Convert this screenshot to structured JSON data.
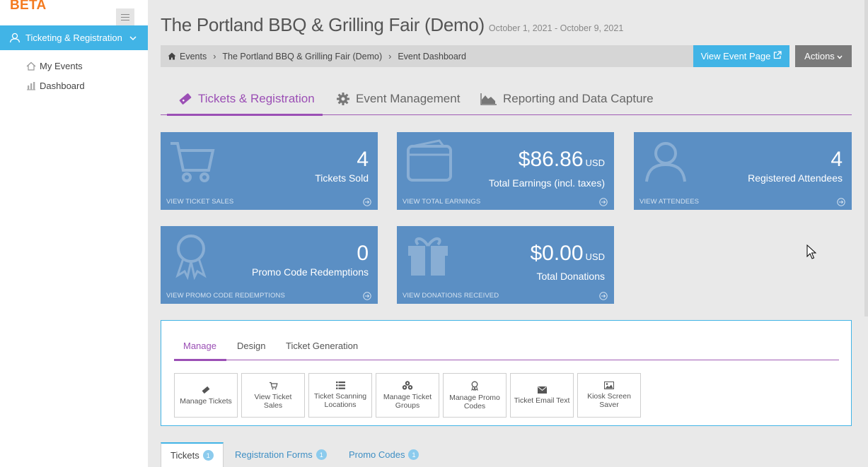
{
  "sidebar": {
    "beta": "BETA",
    "main_item": "Ticketing & Registration",
    "items": [
      {
        "label": "My Events",
        "icon": "home-icon"
      },
      {
        "label": "Dashboard",
        "icon": "bar-chart-icon"
      }
    ]
  },
  "header": {
    "title": "The Portland BBQ & Grilling Fair (Demo)",
    "dates": "October 1, 2021 - October 9, 2021"
  },
  "breadcrumb": {
    "items": [
      "Events",
      "The Portland BBQ & Grilling Fair (Demo)",
      "Event Dashboard"
    ]
  },
  "buttons": {
    "view_event": "View Event Page",
    "actions": "Actions"
  },
  "main_tabs": [
    {
      "label": "Tickets & Registration",
      "active": true
    },
    {
      "label": "Event Management",
      "active": false
    },
    {
      "label": "Reporting and Data Capture",
      "active": false
    }
  ],
  "cards": [
    {
      "value": "4",
      "unit": "",
      "label": "Tickets Sold",
      "link": "VIEW TICKET SALES"
    },
    {
      "value": "$86.86",
      "unit": "USD",
      "label": "Total Earnings (incl. taxes)",
      "link": "VIEW TOTAL EARNINGS"
    },
    {
      "value": "4",
      "unit": "",
      "label": "Registered Attendees",
      "link": "VIEW ATTENDEES"
    },
    {
      "value": "0",
      "unit": "",
      "label": "Promo Code Redemptions",
      "link": "VIEW PROMO CODE REDEMPTIONS"
    },
    {
      "value": "$0.00",
      "unit": "USD",
      "label": "Total Donations",
      "link": "VIEW DONATIONS RECEIVED"
    }
  ],
  "panel": {
    "tabs": [
      "Manage",
      "Design",
      "Ticket Generation"
    ],
    "tools": [
      "Manage Tickets",
      "View Ticket Sales",
      "Ticket Scanning Locations",
      "Manage Ticket Groups",
      "Manage Promo Codes",
      "Ticket Email Text",
      "Kiosk Screen Saver"
    ]
  },
  "bottom_tabs": [
    {
      "label": "Tickets",
      "badge": "1"
    },
    {
      "label": "Registration Forms",
      "badge": "1"
    },
    {
      "label": "Promo Codes",
      "badge": "1"
    }
  ],
  "colors": {
    "accent_blue": "#41b4e6",
    "card_blue": "#5b8fc4",
    "purple": "#9b4fb5",
    "beta_orange": "#f47b20"
  }
}
